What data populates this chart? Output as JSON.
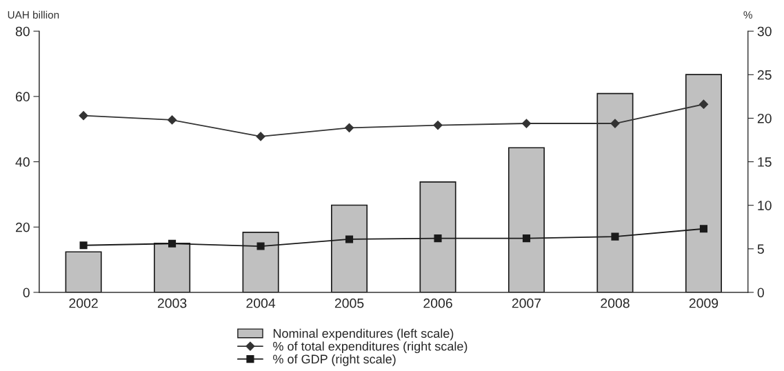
{
  "chart_data": {
    "type": "bar",
    "ylabel": "UAH billion",
    "y2label": "%",
    "categories": [
      "2002",
      "2003",
      "2004",
      "2005",
      "2006",
      "2007",
      "2008",
      "2009"
    ],
    "series": [
      {
        "name": "Nominal expenditures (left scale)",
        "color": "#c0c0c0",
        "values": [
          12.4,
          15.0,
          18.4,
          26.7,
          33.8,
          44.3,
          60.9,
          66.7
        ]
      },
      {
        "name": "% of total expenditures (right scale)",
        "type": "line",
        "axis": "y2",
        "marker": "diamond",
        "color": "#333333",
        "values": [
          20.3,
          19.8,
          17.9,
          18.9,
          19.2,
          19.4,
          19.4,
          21.6
        ]
      },
      {
        "name": "% of GDP (right scale)",
        "type": "line",
        "axis": "y2",
        "marker": "square",
        "color": "#1a1a1a",
        "values": [
          5.4,
          5.6,
          5.3,
          6.1,
          6.2,
          6.2,
          6.4,
          7.3
        ]
      }
    ],
    "ylim": [
      0,
      80
    ],
    "yticks": [
      0,
      20,
      40,
      60,
      80
    ],
    "y2lim": [
      0,
      30
    ],
    "y2ticks": [
      0,
      5,
      10,
      15,
      20,
      25,
      30
    ],
    "grid": false,
    "legend": "bottom"
  }
}
